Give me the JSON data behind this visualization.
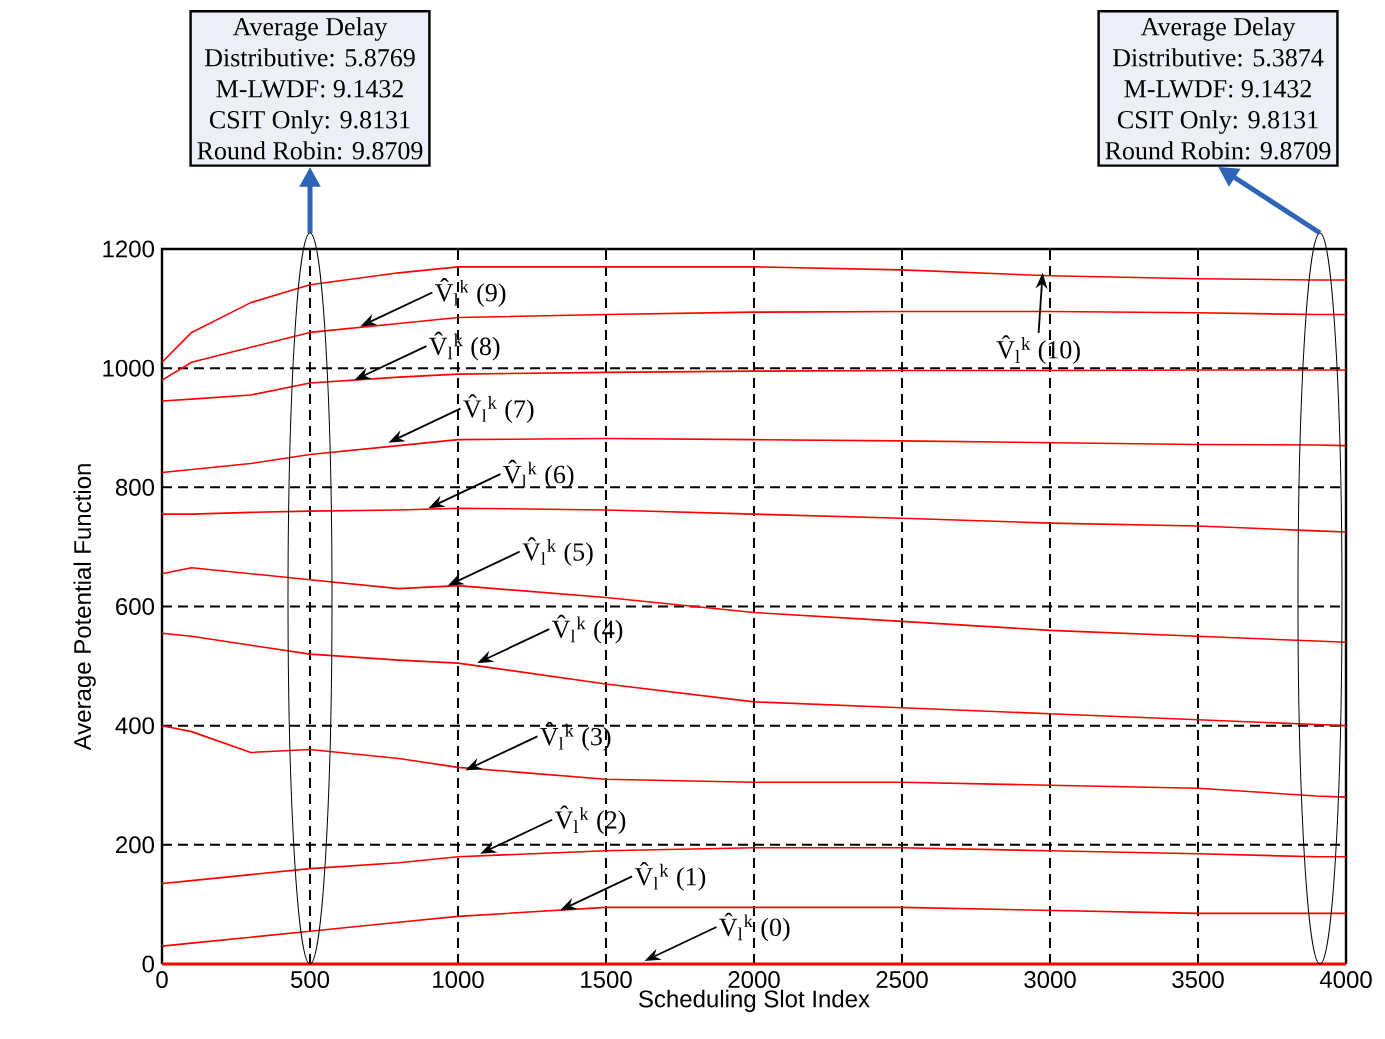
{
  "chart_data": {
    "type": "line",
    "xlabel": "Scheduling Slot Index",
    "ylabel": "Average Potential Function",
    "x": [
      0,
      100,
      300,
      500,
      800,
      1000,
      1500,
      2000,
      2500,
      3000,
      3500,
      3900,
      4000
    ],
    "xlim": [
      0,
      4000
    ],
    "ylim": [
      0,
      1200
    ],
    "xticks": [
      0,
      500,
      1000,
      1500,
      2000,
      2500,
      3000,
      3500,
      4000
    ],
    "yticks": [
      0,
      200,
      400,
      600,
      800,
      1000,
      1200
    ],
    "grid": true,
    "marker": "none",
    "line_style": "solid",
    "series": [
      {
        "color": "#ff0000",
        "values": [
          0,
          0,
          0,
          0,
          0,
          0,
          0,
          0,
          0,
          0,
          0,
          0,
          0
        ]
      },
      {
        "color": "#ff0000",
        "values": [
          30,
          35,
          45,
          55,
          70,
          80,
          95,
          95,
          95,
          90,
          85,
          85,
          85
        ]
      },
      {
        "color": "#ff0000",
        "values": [
          135,
          140,
          150,
          160,
          170,
          180,
          190,
          195,
          195,
          190,
          185,
          180,
          180
        ]
      },
      {
        "color": "#ff0000",
        "values": [
          400,
          390,
          355,
          360,
          345,
          330,
          310,
          305,
          305,
          300,
          295,
          282,
          280
        ]
      },
      {
        "color": "#ff0000",
        "values": [
          555,
          550,
          535,
          520,
          510,
          505,
          470,
          440,
          430,
          420,
          410,
          402,
          400
        ]
      },
      {
        "color": "#ff0000",
        "values": [
          655,
          665,
          655,
          645,
          630,
          635,
          615,
          590,
          575,
          560,
          550,
          542,
          540
        ]
      },
      {
        "color": "#ff0000",
        "values": [
          755,
          755,
          758,
          760,
          762,
          765,
          762,
          755,
          748,
          740,
          735,
          727,
          725
        ]
      },
      {
        "color": "#ff0000",
        "values": [
          825,
          830,
          840,
          855,
          870,
          880,
          882,
          880,
          878,
          875,
          872,
          871,
          870
        ]
      },
      {
        "color": "#ff0000",
        "values": [
          945,
          948,
          955,
          975,
          985,
          990,
          993,
          995,
          996,
          996,
          997,
          997,
          997
        ]
      },
      {
        "color": "#ff0000",
        "values": [
          980,
          1010,
          1035,
          1060,
          1075,
          1085,
          1090,
          1094,
          1095,
          1095,
          1093,
          1090,
          1090
        ]
      },
      {
        "color": "#ff0000",
        "values": [
          1010,
          1060,
          1110,
          1140,
          1160,
          1170,
          1170,
          1170,
          1165,
          1155,
          1150,
          1148,
          1148
        ]
      }
    ],
    "annotations": [
      {
        "text": "V̂$_{l}$$^{k}$ (0)",
        "x": 1630,
        "y": 5
      },
      {
        "text": "V̂$_{l}$$^{k}$ (1)",
        "x": 1345,
        "y": 90
      },
      {
        "text": "V̂$_{l}$$^{k}$ (2)",
        "x": 1075,
        "y": 185
      },
      {
        "text": "V̂$_{l}$$^{k}$ (3)",
        "x": 1025,
        "y": 325
      },
      {
        "text": "V̂$_{l}$$^{k}$ (4)",
        "x": 1065,
        "y": 505
      },
      {
        "text": "V̂$_{l}$$^{k}$ (5)",
        "x": 965,
        "y": 635
      },
      {
        "text": "V̂$_{l}$$^{k}$ (6)",
        "x": 900,
        "y": 765
      },
      {
        "text": "V̂$_{l}$$^{k}$ (7)",
        "x": 765,
        "y": 875
      },
      {
        "text": "V̂$_{l}$$^{k}$ (8)",
        "x": 650,
        "y": 980
      },
      {
        "text": "V̂$_{l}$$^{k}$ (9)",
        "x": 670,
        "y": 1070
      },
      {
        "text": "V̂$_{l}$$^{k}$ (10)",
        "x": 2975,
        "y": 1160
      },
      "Average Delay",
      "Distributive: 5.8769",
      "M-LWDF: 9.1432",
      "CSIT Only: 9.8131",
      "Round Robin: 9.8709",
      "Average Delay",
      "Distributive: 5.3874",
      "M-LWDF: 9.1432",
      "CSIT Only: 9.8131",
      "Round Robin: 9.8709"
    ]
  }
}
